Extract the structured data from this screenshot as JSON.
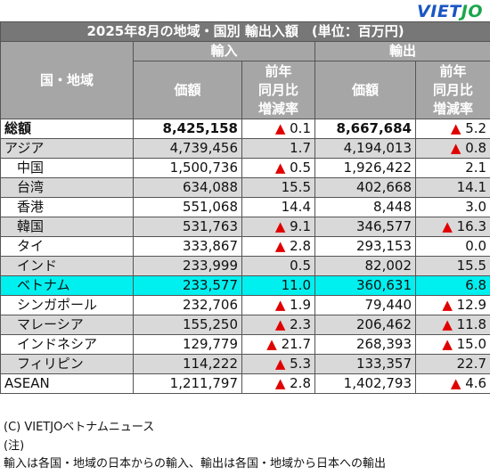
{
  "logo": {
    "part1": "VIET",
    "part2": "JO"
  },
  "watermark_text": "VIETJO",
  "title": "2025年8月の地域・国別 輸出入額　(単位：百万円)",
  "headers": {
    "region": "国・地域",
    "import": "輸入",
    "export": "輸出",
    "value": "価額",
    "yoy_line1": "前年",
    "yoy_line2": "同月比",
    "yoy_line3": "増減率"
  },
  "rows": [
    {
      "name": "総額",
      "imp": "8,425,158",
      "imp_chg": "0.1",
      "imp_up": true,
      "exp": "8,667,684",
      "exp_chg": "5.2",
      "exp_up": true,
      "style": "white",
      "bold": true,
      "indent": false
    },
    {
      "name": "アジア",
      "imp": "4,739,456",
      "imp_chg": "1.7",
      "imp_up": false,
      "exp": "4,194,013",
      "exp_chg": "0.8",
      "exp_up": true,
      "style": "gray",
      "bold": false,
      "indent": false
    },
    {
      "name": "中国",
      "imp": "1,500,736",
      "imp_chg": "0.5",
      "imp_up": true,
      "exp": "1,926,422",
      "exp_chg": "2.1",
      "exp_up": false,
      "style": "white",
      "bold": false,
      "indent": true
    },
    {
      "name": "台湾",
      "imp": "634,088",
      "imp_chg": "15.5",
      "imp_up": false,
      "exp": "402,668",
      "exp_chg": "14.1",
      "exp_up": false,
      "style": "gray",
      "bold": false,
      "indent": true
    },
    {
      "name": "香港",
      "imp": "551,068",
      "imp_chg": "14.4",
      "imp_up": false,
      "exp": "8,448",
      "exp_chg": "3.0",
      "exp_up": false,
      "style": "white",
      "bold": false,
      "indent": true
    },
    {
      "name": "韓国",
      "imp": "531,763",
      "imp_chg": "9.1",
      "imp_up": true,
      "exp": "346,577",
      "exp_chg": "16.3",
      "exp_up": true,
      "style": "gray",
      "bold": false,
      "indent": true
    },
    {
      "name": "タイ",
      "imp": "333,867",
      "imp_chg": "2.8",
      "imp_up": true,
      "exp": "293,153",
      "exp_chg": "0.0",
      "exp_up": false,
      "style": "white",
      "bold": false,
      "indent": true
    },
    {
      "name": "インド",
      "imp": "233,999",
      "imp_chg": "0.5",
      "imp_up": false,
      "exp": "82,002",
      "exp_chg": "15.5",
      "exp_up": false,
      "style": "gray",
      "bold": false,
      "indent": true
    },
    {
      "name": "ベトナム",
      "imp": "233,577",
      "imp_chg": "11.0",
      "imp_up": false,
      "exp": "360,631",
      "exp_chg": "6.8",
      "exp_up": false,
      "style": "cyan",
      "bold": false,
      "indent": true
    },
    {
      "name": "シンガポール",
      "imp": "232,706",
      "imp_chg": "1.9",
      "imp_up": true,
      "exp": "79,440",
      "exp_chg": "12.9",
      "exp_up": true,
      "style": "white",
      "bold": false,
      "indent": true
    },
    {
      "name": "マレーシア",
      "imp": "155,250",
      "imp_chg": "2.3",
      "imp_up": true,
      "exp": "206,462",
      "exp_chg": "11.8",
      "exp_up": true,
      "style": "gray",
      "bold": false,
      "indent": true
    },
    {
      "name": "インドネシア",
      "imp": "129,779",
      "imp_chg": "21.7",
      "imp_up": true,
      "exp": "268,393",
      "exp_chg": "15.0",
      "exp_up": true,
      "style": "white",
      "bold": false,
      "indent": true
    },
    {
      "name": "フィリピン",
      "imp": "114,222",
      "imp_chg": "5.3",
      "imp_up": true,
      "exp": "133,357",
      "exp_chg": "22.7",
      "exp_up": false,
      "style": "gray",
      "bold": false,
      "indent": true
    },
    {
      "name": "ASEAN",
      "imp": "1,211,797",
      "imp_chg": "2.8",
      "imp_up": true,
      "exp": "1,402,793",
      "exp_chg": "4.6",
      "exp_up": true,
      "style": "white",
      "bold": false,
      "indent": false
    }
  ],
  "triangle": "▲",
  "footer": {
    "copyright": "(C) VIETJOベトナムニュース",
    "note_label": "(注)",
    "note": "輸入は各国・地域の日本からの輸入、輸出は各国・地域から日本への輸出"
  },
  "colors": {
    "title_bg": "#777777",
    "header_bg": "#a6a6a6",
    "gray_row": "#d9d9d9",
    "highlight_row": "#00f0f0",
    "up_marker": "#e00000"
  }
}
